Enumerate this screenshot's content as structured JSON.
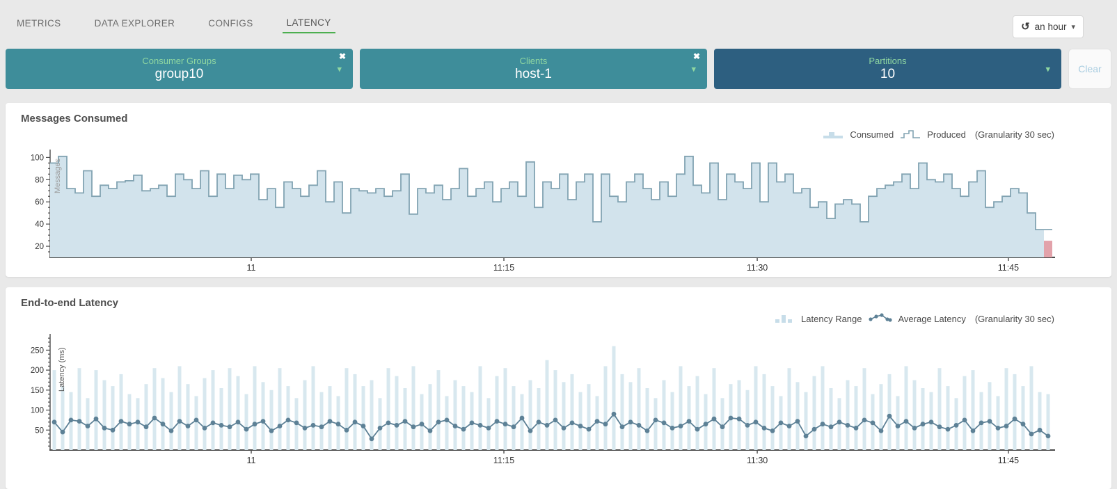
{
  "nav": {
    "tabs": [
      {
        "label": "METRICS",
        "active": false
      },
      {
        "label": "DATA EXPLORER",
        "active": false
      },
      {
        "label": "CONFIGS",
        "active": false
      },
      {
        "label": "LATENCY",
        "active": true
      }
    ],
    "time_selector": {
      "label": "an hour",
      "icon": "history-icon"
    }
  },
  "filters": {
    "items": [
      {
        "label": "Consumer Groups",
        "value": "group10",
        "removable": true,
        "color": "#3e8d9a"
      },
      {
        "label": "Clients",
        "value": "host-1",
        "removable": true,
        "color": "#3e8d9a"
      },
      {
        "label": "Partitions",
        "value": "10",
        "removable": false,
        "color": "#2d5f80"
      }
    ],
    "clear_label": "Clear"
  },
  "colors": {
    "accent_green": "#4caf50",
    "label_green": "#8fd7a1",
    "teal": "#3e8d9a",
    "dark_blue": "#2d5f80",
    "chart_fill": "#d2e3ec",
    "chart_stroke": "#82a3b2",
    "bar_fill": "#d8e8ef",
    "line_color": "#5d8196",
    "incomplete": "#e2a2aa",
    "clear_text": "#a9cde0",
    "axis": "#4a4a4a",
    "tick_text": "#333333"
  },
  "chart_data": [
    {
      "type": "area",
      "title": "Messages Consumed",
      "ylabel": "Messages",
      "legend": [
        {
          "label": "Consumed",
          "swatch": "step-area"
        },
        {
          "label": "Produced",
          "swatch": "step-line"
        }
      ],
      "granularity_note": "(Granularity 30 sec)",
      "x_ticks": [
        {
          "label": "11",
          "f": 0.2007
        },
        {
          "label": "11:15",
          "f": 0.4528
        },
        {
          "label": "11:30",
          "f": 0.7056
        },
        {
          "label": "11:45",
          "f": 0.9562
        }
      ],
      "y_ticks": [
        20,
        40,
        60,
        80,
        100
      ],
      "ylim": [
        10,
        104
      ],
      "values": [
        95,
        101,
        72,
        68,
        88,
        65,
        75,
        72,
        78,
        79,
        84,
        70,
        72,
        75,
        65,
        85,
        80,
        72,
        88,
        65,
        85,
        72,
        84,
        80,
        85,
        62,
        72,
        55,
        78,
        72,
        65,
        75,
        88,
        60,
        78,
        50,
        72,
        70,
        68,
        72,
        65,
        70,
        85,
        49,
        72,
        68,
        75,
        62,
        72,
        90,
        65,
        72,
        78,
        60,
        72,
        78,
        65,
        96,
        55,
        78,
        72,
        85,
        62,
        78,
        85,
        42,
        85,
        65,
        60,
        78,
        85,
        72,
        62,
        78,
        65,
        85,
        101,
        75,
        68,
        95,
        62,
        85,
        78,
        72,
        95,
        60,
        95,
        78,
        85,
        68,
        72,
        55,
        60,
        45,
        58,
        62,
        58,
        42,
        65,
        72,
        75,
        78,
        85,
        72,
        95,
        80,
        78,
        85,
        72,
        65,
        78,
        88,
        55,
        60,
        65,
        72,
        68,
        50,
        35
      ],
      "tail_value": 35,
      "incomplete_value": 25
    },
    {
      "type": "bar",
      "title": "End-to-end Latency",
      "ylabel": "Latency (ms)",
      "legend": [
        {
          "label": "Latency Range",
          "swatch": "bars"
        },
        {
          "label": "Average Latency",
          "swatch": "line-dots"
        }
      ],
      "granularity_note": "(Granularity 30 sec)",
      "x_ticks": [
        {
          "label": "11",
          "f": 0.2007
        },
        {
          "label": "11:15",
          "f": 0.4528
        },
        {
          "label": "11:30",
          "f": 0.7056
        },
        {
          "label": "11:45",
          "f": 0.9562
        }
      ],
      "y_ticks": [
        50,
        100,
        150,
        200,
        250
      ],
      "ylim": [
        0,
        282
      ],
      "series": [
        {
          "name": "Latency Range",
          "values": [
            200,
            160,
            145,
            205,
            130,
            200,
            175,
            160,
            190,
            140,
            130,
            165,
            205,
            180,
            145,
            210,
            165,
            135,
            180,
            200,
            155,
            205,
            185,
            140,
            210,
            170,
            150,
            205,
            160,
            130,
            175,
            210,
            145,
            160,
            135,
            205,
            190,
            160,
            175,
            130,
            205,
            185,
            155,
            210,
            140,
            165,
            200,
            135,
            175,
            160,
            145,
            210,
            130,
            185,
            205,
            160,
            140,
            175,
            155,
            225,
            200,
            170,
            190,
            145,
            165,
            135,
            210,
            260,
            190,
            170,
            205,
            155,
            130,
            175,
            145,
            210,
            160,
            185,
            140,
            205,
            130,
            165,
            175,
            150,
            210,
            190,
            160,
            135,
            205,
            170,
            145,
            185,
            210,
            155,
            130,
            175,
            160,
            205,
            140,
            165,
            190,
            135,
            210,
            175,
            155,
            145,
            205,
            160,
            130,
            185,
            200,
            145,
            170,
            135,
            205,
            190,
            160,
            210,
            145,
            140
          ]
        },
        {
          "name": "Average Latency",
          "values": [
            70,
            45,
            75,
            72,
            60,
            78,
            55,
            50,
            72,
            65,
            70,
            58,
            80,
            65,
            48,
            72,
            60,
            75,
            55,
            68,
            62,
            58,
            70,
            52,
            65,
            72,
            48,
            60,
            75,
            68,
            55,
            62,
            58,
            72,
            65,
            50,
            70,
            60,
            28,
            55,
            68,
            62,
            72,
            58,
            65,
            48,
            70,
            75,
            60,
            52,
            68,
            62,
            55,
            72,
            65,
            58,
            80,
            48,
            70,
            62,
            75,
            55,
            68,
            60,
            52,
            72,
            65,
            90,
            58,
            70,
            62,
            48,
            75,
            68,
            55,
            60,
            72,
            52,
            65,
            78,
            58,
            80,
            78,
            62,
            70,
            55,
            48,
            68,
            60,
            72,
            35,
            52,
            65,
            58,
            70,
            62,
            55,
            75,
            68,
            48,
            85,
            60,
            72,
            55,
            65,
            70,
            58,
            52,
            62,
            75,
            48,
            68,
            72,
            55,
            60,
            78,
            65,
            40,
            50,
            35
          ]
        }
      ]
    }
  ]
}
